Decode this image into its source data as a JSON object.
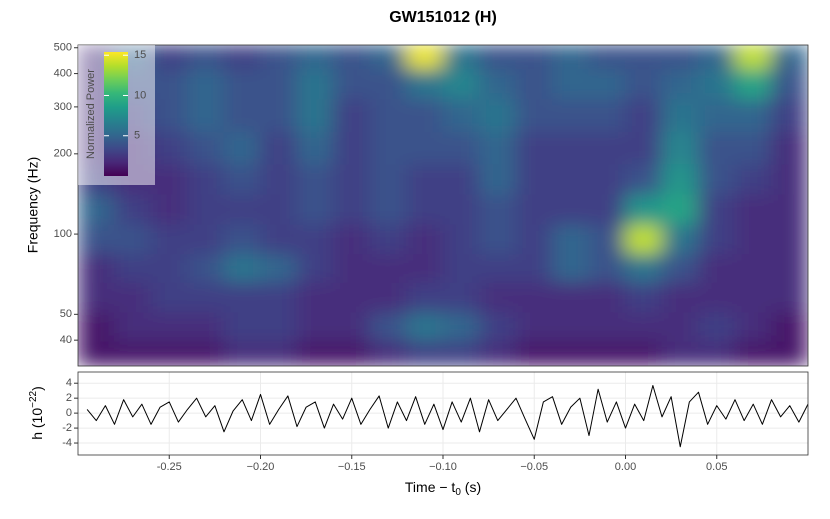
{
  "chart_data": [
    {
      "type": "heatmap",
      "title": "GW151012 (H)",
      "ylabel": "Frequency (Hz)",
      "legend_title": "Normalized Power",
      "legend": "top-left",
      "xlim": [
        -0.3,
        0.1
      ],
      "ylim": [
        32,
        512
      ],
      "log_y": true,
      "yticks": [
        40,
        50,
        100,
        200,
        300,
        400,
        500
      ],
      "clim": [
        0,
        15.4
      ],
      "cticks": [
        5,
        10,
        15
      ],
      "colormap": [
        "#440154",
        "#482878",
        "#3e4989",
        "#31688e",
        "#26828e",
        "#1f9e89",
        "#35b779",
        "#6ece58",
        "#b5de2b",
        "#fde725"
      ],
      "x": [
        -0.29,
        -0.27,
        -0.25,
        -0.23,
        -0.21,
        -0.19,
        -0.17,
        -0.15,
        -0.13,
        -0.11,
        -0.09,
        -0.07,
        -0.05,
        -0.03,
        -0.01,
        0.01,
        0.03,
        0.05,
        0.07,
        0.09
      ],
      "y": [
        35,
        45,
        58,
        75,
        95,
        125,
        160,
        210,
        280,
        370,
        470
      ],
      "z": [
        [
          1,
          1,
          1,
          1,
          2,
          2,
          1,
          1,
          2,
          3,
          3,
          2,
          1,
          1,
          1,
          1,
          2,
          2,
          1,
          1
        ],
        [
          1,
          2,
          2,
          2,
          3,
          3,
          2,
          2,
          4,
          6,
          5,
          3,
          2,
          2,
          2,
          2,
          2,
          3,
          2,
          1
        ],
        [
          2,
          2,
          3,
          3,
          3,
          3,
          2,
          2,
          2,
          3,
          3,
          2,
          2,
          2,
          2,
          3,
          2,
          2,
          2,
          2
        ],
        [
          2,
          3,
          3,
          4,
          6,
          5,
          3,
          2,
          2,
          2,
          3,
          3,
          3,
          5,
          4,
          6,
          4,
          2,
          2,
          2
        ],
        [
          4,
          4,
          3,
          3,
          4,
          3,
          3,
          2,
          3,
          2,
          3,
          4,
          3,
          5,
          4,
          14,
          6,
          3,
          2,
          2
        ],
        [
          5,
          3,
          2,
          3,
          3,
          3,
          4,
          3,
          4,
          3,
          3,
          4,
          3,
          3,
          3,
          8,
          9,
          3,
          2,
          2
        ],
        [
          3,
          2,
          2,
          3,
          4,
          3,
          4,
          3,
          4,
          3,
          3,
          5,
          3,
          3,
          3,
          4,
          8,
          4,
          3,
          2
        ],
        [
          2,
          2,
          3,
          4,
          5,
          3,
          5,
          3,
          4,
          4,
          4,
          5,
          3,
          3,
          3,
          3,
          7,
          4,
          4,
          2
        ],
        [
          2,
          3,
          4,
          5,
          4,
          4,
          6,
          3,
          4,
          4,
          5,
          6,
          4,
          4,
          4,
          3,
          6,
          5,
          5,
          3
        ],
        [
          2,
          4,
          4,
          5,
          4,
          4,
          6,
          4,
          4,
          6,
          7,
          5,
          4,
          5,
          5,
          4,
          5,
          6,
          9,
          4
        ],
        [
          2,
          5,
          3,
          4,
          3,
          4,
          5,
          4,
          5,
          15,
          6,
          4,
          4,
          5,
          4,
          4,
          4,
          5,
          14,
          5
        ]
      ]
    },
    {
      "type": "line",
      "ylabel": {
        "text": "h (10",
        "sup": "−22",
        "end": ")"
      },
      "xlabel": {
        "text": "Time − t",
        "sub": "0",
        "end": " (s)"
      },
      "xlim": [
        -0.3,
        0.1
      ],
      "ylim": [
        -5.6,
        5.5
      ],
      "grid": true,
      "color": "#000000",
      "xticks": [
        -0.25,
        {
          "value": -0.2,
          "label": "−0.20"
        },
        {
          "value": -0.15,
          "label": "−0.15"
        },
        {
          "value": -0.1,
          "label": "−0.10"
        },
        {
          "value": -0.05,
          "label": "−0.05"
        },
        {
          "value": 0,
          "label": "0.00"
        },
        0.05
      ],
      "yticks": [
        4,
        2,
        0,
        -2,
        -4
      ],
      "x": [
        -0.295,
        -0.29,
        -0.285,
        -0.28,
        -0.275,
        -0.27,
        -0.265,
        -0.26,
        -0.255,
        -0.25,
        -0.245,
        -0.24,
        -0.235,
        -0.23,
        -0.225,
        -0.22,
        -0.215,
        -0.21,
        -0.205,
        -0.2,
        -0.195,
        -0.19,
        -0.185,
        -0.18,
        -0.175,
        -0.17,
        -0.165,
        -0.16,
        -0.155,
        -0.15,
        -0.145,
        -0.14,
        -0.135,
        -0.13,
        -0.125,
        -0.12,
        -0.115,
        -0.11,
        -0.105,
        -0.1,
        -0.095,
        -0.09,
        -0.085,
        -0.08,
        -0.075,
        -0.07,
        -0.065,
        -0.06,
        -0.055,
        -0.05,
        -0.045,
        -0.04,
        -0.035,
        -0.03,
        -0.025,
        -0.02,
        -0.015,
        -0.01,
        -0.005,
        0,
        0.005,
        0.01,
        0.015,
        0.02,
        0.025,
        0.03,
        0.035,
        0.04,
        0.045,
        0.05,
        0.055,
        0.06,
        0.065,
        0.07,
        0.075,
        0.08,
        0.085,
        0.09,
        0.095,
        0.1
      ],
      "values": [
        0.5,
        -1,
        1,
        -1.5,
        1.8,
        -0.5,
        1.2,
        -1.5,
        0.8,
        1.5,
        -1.2,
        0.5,
        2,
        -0.5,
        1,
        -2.5,
        0.3,
        1.8,
        -1,
        2.5,
        -1.5,
        0.5,
        2.3,
        -1.8,
        0.8,
        1.5,
        -2,
        1.2,
        -0.8,
        2,
        -1.5,
        0.5,
        2.3,
        -2,
        1.5,
        -1,
        2.2,
        -1.5,
        1.2,
        -2.2,
        1.5,
        -1.2,
        2,
        -2.5,
        1.8,
        -1,
        0.5,
        2,
        -0.8,
        -3.5,
        1.5,
        2.2,
        -1.5,
        0.8,
        2,
        -3,
        3.2,
        -1.2,
        1.5,
        -2,
        1.2,
        -1,
        3.7,
        -0.5,
        2.2,
        -4.5,
        1.5,
        2.8,
        -1.5,
        1,
        -0.8,
        1.8,
        -1,
        1.2,
        -1.5,
        1.8,
        -0.5,
        1,
        -1.2,
        1.2
      ]
    }
  ]
}
